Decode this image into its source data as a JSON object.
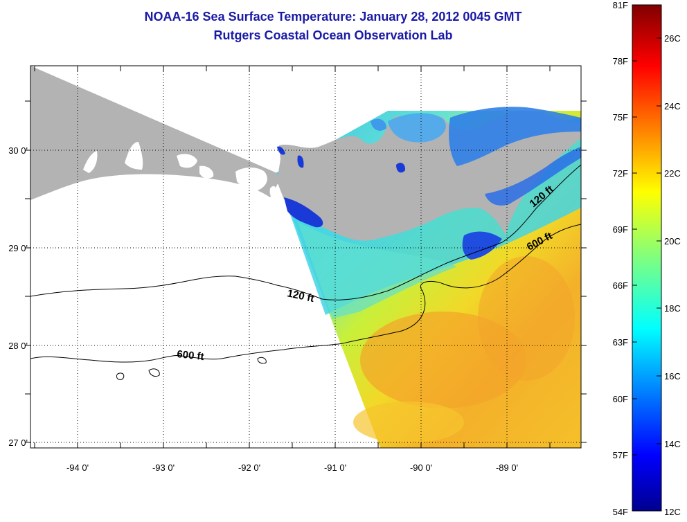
{
  "header": {
    "title": "NOAA-16 Sea Surface Temperature:  January 28, 2012 0045 GMT",
    "subtitle": "Rutgers Coastal Ocean Observation Lab"
  },
  "map": {
    "lon_range": [
      -94.55,
      -88.35
    ],
    "lat_range": [
      26.95,
      30.85
    ],
    "lon_ticks": [
      "-94 0'",
      "-93 0'",
      "-92 0'",
      "-91 0'",
      "-90 0'",
      "-89 0'"
    ],
    "lat_ticks": [
      "30 0'",
      "29 0'",
      "28 0'",
      "27 0'"
    ],
    "grid": "dotted",
    "contours": [
      {
        "label": "120 ft"
      },
      {
        "label": "600 ft"
      },
      {
        "label": "120 ft"
      },
      {
        "label": "600 ft"
      }
    ],
    "colors": {
      "land": "#b3b3b3",
      "no_data": "#ffffff",
      "warm_water": "#f5b02a",
      "cool_water": "#3fd0e6",
      "coastal_cold": "#1a3ad8"
    }
  },
  "colorbar": {
    "range_f": [
      54,
      81
    ],
    "range_c": [
      12,
      27
    ],
    "fahrenheit_labels": [
      "81F",
      "78F",
      "75F",
      "72F",
      "69F",
      "66F",
      "63F",
      "60F",
      "57F",
      "54F"
    ],
    "celsius_labels": [
      "26C",
      "24C",
      "22C",
      "20C",
      "18C",
      "16C",
      "14C",
      "12C"
    ],
    "colormap": "jet"
  }
}
